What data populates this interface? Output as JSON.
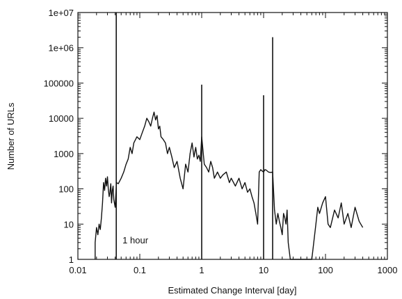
{
  "chart_data": {
    "type": "line",
    "title": "",
    "xlabel": "Estimated Change Interval [day]",
    "ylabel": "Number of URLs",
    "xscale": "log",
    "yscale": "log",
    "xlim": [
      0.01,
      1000
    ],
    "ylim": [
      1,
      10000000
    ],
    "grid": false,
    "x_ticks": [
      {
        "value": 0.01,
        "label": "0.01"
      },
      {
        "value": 0.1,
        "label": "0.1"
      },
      {
        "value": 1,
        "label": "1"
      },
      {
        "value": 10,
        "label": "10"
      },
      {
        "value": 100,
        "label": "100"
      },
      {
        "value": 1000,
        "label": "1000"
      }
    ],
    "y_ticks": [
      {
        "value": 1,
        "label": "1"
      },
      {
        "value": 10,
        "label": "10"
      },
      {
        "value": 100,
        "label": "100"
      },
      {
        "value": 1000,
        "label": "1000"
      },
      {
        "value": 10000,
        "label": "10000"
      },
      {
        "value": 100000,
        "label": "100000"
      },
      {
        "value": 1000000,
        "label": "1e+06"
      },
      {
        "value": 10000000,
        "label": "1e+07"
      }
    ],
    "series": [
      {
        "x": [
          0.019,
          0.019,
          0.02,
          0.021,
          0.022,
          0.023,
          0.024,
          0.025,
          0.026,
          0.027,
          0.028,
          0.029,
          0.03,
          0.031,
          0.032,
          0.033,
          0.034,
          0.035,
          0.036,
          0.037,
          0.038,
          0.04,
          0.042,
          0.045,
          0.05,
          0.055,
          0.06,
          0.065,
          0.07,
          0.075,
          0.08,
          0.09,
          0.1,
          0.11,
          0.12,
          0.13,
          0.14,
          0.15,
          0.16,
          0.17,
          0.18,
          0.19,
          0.2,
          0.21,
          0.22,
          0.24,
          0.26,
          0.28,
          0.3,
          0.33,
          0.36,
          0.4,
          0.45,
          0.5,
          0.55,
          0.6,
          0.65,
          0.7,
          0.75,
          0.8,
          0.85,
          0.9,
          0.95,
          1.0,
          1.1,
          1.2,
          1.3,
          1.4,
          1.5,
          1.6,
          1.8,
          2.0,
          2.2,
          2.5,
          2.8,
          3.0,
          3.5,
          4.0,
          4.5,
          5.0,
          5.5,
          6.0,
          6.5,
          7.0,
          7.5,
          8.0,
          8.5,
          9.0,
          9.5,
          10.0,
          10.5,
          11.0,
          12.0,
          13.0,
          14.0,
          15.0,
          16.0,
          17.0,
          18.0,
          19.0,
          20.0,
          21.0,
          22.0,
          23.0,
          24.0,
          25.0,
          27.0,
          30.0,
          35.0,
          40.0,
          50.0,
          60.0,
          70.0,
          75.0,
          80.0,
          90.0,
          100.0,
          110.0,
          120.0,
          140.0,
          160.0,
          180.0,
          200.0,
          230.0,
          260.0,
          300.0,
          350.0,
          400.0
        ],
        "y": [
          1,
          3,
          8,
          5,
          10,
          7,
          15,
          40,
          150,
          90,
          200,
          120,
          220,
          100,
          60,
          80,
          140,
          40,
          90,
          120,
          50,
          30,
          150,
          140,
          200,
          300,
          500,
          700,
          1500,
          1000,
          2000,
          3000,
          2500,
          4000,
          6000,
          10000,
          8000,
          6000,
          10000,
          15000,
          9000,
          12000,
          5000,
          6000,
          3000,
          2500,
          2000,
          1000,
          1500,
          800,
          400,
          600,
          200,
          100,
          500,
          300,
          1000,
          2000,
          800,
          1500,
          700,
          900,
          600,
          3000,
          500,
          400,
          300,
          600,
          400,
          200,
          300,
          200,
          250,
          300,
          150,
          200,
          120,
          200,
          100,
          150,
          80,
          100,
          60,
          40,
          20,
          10,
          300,
          350,
          320,
          300,
          350,
          340,
          300,
          290,
          300,
          25,
          10,
          20,
          12,
          8,
          5,
          20,
          15,
          10,
          25,
          3,
          1,
          1,
          1,
          1,
          1,
          1,
          10,
          30,
          20,
          40,
          60,
          10,
          8,
          25,
          15,
          40,
          10,
          20,
          8,
          30,
          12,
          8
        ]
      }
    ],
    "spikes": [
      {
        "x": 1.0,
        "y": 90000
      },
      {
        "x": 10.0,
        "y": 45000
      },
      {
        "x": 14.0,
        "y": 2000000
      }
    ],
    "markers": [
      {
        "x": 0.04167,
        "label": "1 hour"
      }
    ]
  }
}
